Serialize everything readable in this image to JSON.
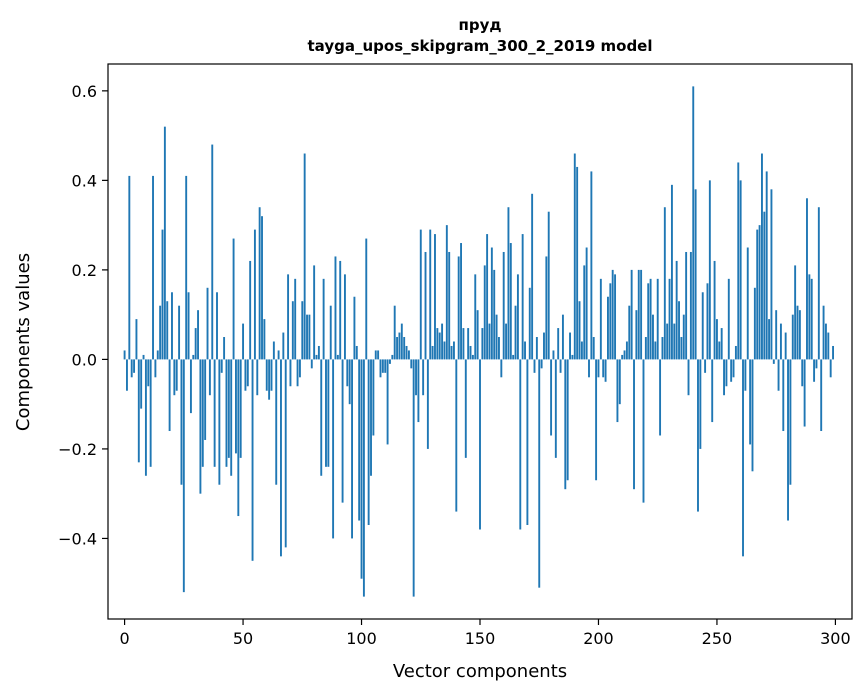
{
  "chart_data": {
    "type": "bar",
    "title": "пруд",
    "subtitle": "tayga_upos_skipgram_300_2_2019 model",
    "xlabel": "Vector components",
    "ylabel": "Components values",
    "xlim": [
      -7,
      307
    ],
    "ylim": [
      -0.58,
      0.66
    ],
    "xticks": [
      0,
      50,
      100,
      150,
      200,
      250,
      300
    ],
    "yticks": [
      -0.4,
      -0.2,
      0.0,
      0.2,
      0.4,
      0.6
    ],
    "ytick_labels": [
      "−0.4",
      "−0.2",
      "0.0",
      "0.2",
      "0.4",
      "0.6"
    ],
    "bar_color": "#1f77b4",
    "grid": false,
    "x": "0..299 (component index)",
    "values": [
      0.02,
      -0.07,
      0.41,
      -0.04,
      -0.03,
      0.09,
      -0.23,
      -0.11,
      0.01,
      -0.26,
      -0.06,
      -0.24,
      0.41,
      -0.04,
      0.02,
      0.12,
      0.29,
      0.52,
      0.13,
      -0.16,
      0.15,
      -0.08,
      -0.07,
      0.12,
      -0.28,
      -0.52,
      0.41,
      0.15,
      -0.12,
      0.01,
      0.07,
      0.11,
      -0.3,
      -0.24,
      -0.18,
      0.16,
      -0.08,
      0.48,
      -0.24,
      0.15,
      -0.28,
      -0.03,
      0.05,
      -0.24,
      -0.22,
      -0.26,
      0.27,
      -0.21,
      -0.35,
      -0.22,
      0.08,
      -0.07,
      -0.06,
      0.22,
      -0.45,
      0.29,
      -0.08,
      0.34,
      0.32,
      0.09,
      -0.07,
      -0.09,
      -0.07,
      0.04,
      -0.28,
      0.02,
      -0.44,
      0.06,
      -0.42,
      0.19,
      -0.06,
      0.13,
      0.18,
      -0.06,
      -0.04,
      0.13,
      0.46,
      0.1,
      0.1,
      -0.02,
      0.21,
      0.01,
      0.03,
      -0.26,
      0.18,
      -0.24,
      -0.24,
      0.12,
      -0.4,
      0.23,
      0.01,
      0.22,
      -0.32,
      0.19,
      -0.06,
      -0.1,
      -0.4,
      0.14,
      0.03,
      -0.36,
      -0.49,
      -0.53,
      0.27,
      -0.37,
      -0.26,
      -0.17,
      0.02,
      0.02,
      -0.04,
      -0.03,
      -0.03,
      -0.19,
      -0.01,
      0.01,
      0.12,
      0.05,
      0.06,
      0.08,
      0.05,
      0.03,
      0.02,
      -0.02,
      -0.53,
      -0.08,
      -0.14,
      0.29,
      -0.08,
      0.24,
      -0.2,
      0.29,
      0.03,
      0.28,
      0.07,
      0.06,
      0.08,
      0.04,
      0.3,
      0.24,
      0.03,
      0.04,
      -0.34,
      0.23,
      0.26,
      0.07,
      -0.22,
      0.07,
      0.03,
      0.01,
      0.19,
      0.11,
      -0.38,
      0.07,
      0.21,
      0.28,
      0.08,
      0.25,
      0.2,
      0.1,
      0.05,
      -0.04,
      0.24,
      0.08,
      0.34,
      0.26,
      0.01,
      0.12,
      0.19,
      -0.38,
      0.28,
      0.04,
      -0.37,
      0.16,
      0.37,
      -0.03,
      0.05,
      -0.51,
      -0.02,
      0.06,
      0.23,
      0.33,
      -0.17,
      0.02,
      -0.22,
      0.07,
      -0.03,
      0.1,
      -0.29,
      -0.27,
      0.06,
      0.01,
      0.46,
      0.43,
      0.13,
      0.04,
      0.21,
      0.25,
      -0.04,
      0.42,
      0.05,
      -0.27,
      -0.04,
      0.18,
      -0.04,
      -0.05,
      0.14,
      0.17,
      0.2,
      0.19,
      -0.14,
      -0.1,
      0.01,
      0.02,
      0.04,
      0.12,
      0.2,
      -0.29,
      0.11,
      0.2,
      0.2,
      -0.32,
      0.05,
      0.17,
      0.18,
      0.1,
      0.04,
      0.18,
      -0.17,
      0.05,
      0.34,
      0.08,
      0.18,
      0.39,
      0.08,
      0.22,
      0.13,
      0.05,
      0.1,
      0.24,
      -0.08,
      0.24,
      0.61,
      0.38,
      -0.34,
      -0.2,
      0.15,
      -0.03,
      0.17,
      0.4,
      -0.14,
      0.22,
      0.09,
      0.04,
      0.07,
      -0.08,
      -0.06,
      0.18,
      -0.05,
      -0.04,
      0.03,
      0.44,
      0.4,
      -0.44,
      -0.07,
      0.25,
      -0.19,
      -0.25,
      0.16,
      0.29,
      0.3,
      0.46,
      0.33,
      0.42,
      0.09,
      0.38,
      -0.01,
      0.11,
      -0.07,
      0.08,
      -0.16,
      0.06,
      -0.36,
      -0.28,
      0.1,
      0.21,
      0.12,
      0.11,
      -0.06,
      -0.15,
      0.36,
      0.19,
      0.18,
      -0.05,
      -0.02,
      0.34,
      -0.16,
      0.12,
      0.08,
      0.06,
      -0.04,
      0.03
    ]
  }
}
